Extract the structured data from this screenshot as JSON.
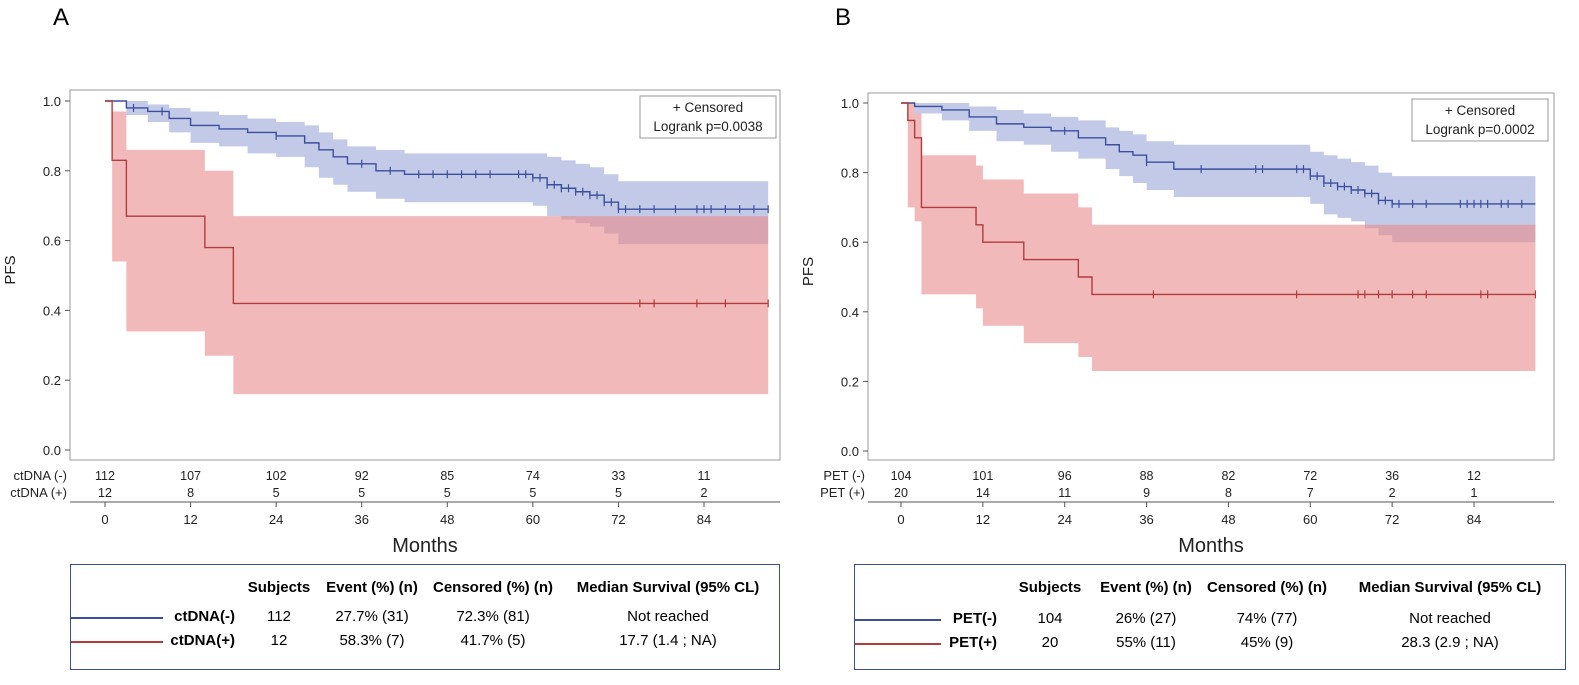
{
  "colors": {
    "negative": "#3b4f9e",
    "negative_band": "#8f9ed4",
    "positive": "#b23b3b",
    "positive_band": "#e88a8a",
    "frame": "#9a9a9a",
    "table_border": "#3a4f94"
  },
  "chart_data": [
    {
      "type": "line",
      "panel_label": "A",
      "ylabel": "PFS",
      "xlabel": "Months",
      "xlim": [
        -3,
        94
      ],
      "ylim": [
        0,
        1.0
      ],
      "xticks": [
        0,
        12,
        24,
        36,
        48,
        60,
        72,
        84
      ],
      "yticks": [
        "0.0",
        "0.2",
        "0.4",
        "0.6",
        "0.8",
        "1.0"
      ],
      "inset_legend": [
        "+ Censored",
        "Logrank p=0.0038"
      ],
      "series": [
        {
          "name": "ctDNA(-)",
          "color_key": "negative",
          "x": [
            0,
            3,
            6,
            9,
            12,
            16,
            20,
            24,
            28,
            30,
            32,
            34,
            38,
            42,
            60,
            62,
            64,
            66,
            68,
            70,
            72,
            93
          ],
          "y": [
            1.0,
            0.98,
            0.97,
            0.95,
            0.93,
            0.92,
            0.91,
            0.9,
            0.88,
            0.86,
            0.84,
            0.82,
            0.8,
            0.79,
            0.78,
            0.76,
            0.75,
            0.74,
            0.73,
            0.71,
            0.69,
            0.69
          ],
          "band_upper": [
            1.0,
            1.0,
            0.99,
            0.98,
            0.97,
            0.96,
            0.95,
            0.94,
            0.93,
            0.91,
            0.89,
            0.87,
            0.86,
            0.85,
            0.85,
            0.84,
            0.83,
            0.82,
            0.81,
            0.79,
            0.77,
            0.77
          ],
          "band_lower": [
            1.0,
            0.96,
            0.94,
            0.91,
            0.88,
            0.87,
            0.85,
            0.84,
            0.81,
            0.78,
            0.76,
            0.74,
            0.72,
            0.71,
            0.7,
            0.67,
            0.66,
            0.65,
            0.64,
            0.62,
            0.59,
            0.58
          ],
          "censored": [
            4,
            8,
            24,
            36,
            40,
            44,
            46,
            48,
            50,
            52,
            54,
            58,
            59,
            60,
            61,
            62,
            63,
            64,
            65,
            66,
            67,
            68,
            69,
            70,
            71,
            72,
            73,
            75,
            77,
            80,
            83,
            84,
            85,
            87,
            89,
            91,
            93
          ]
        },
        {
          "name": "ctDNA(+)",
          "color_key": "positive",
          "x": [
            0,
            1,
            3,
            14,
            18,
            93
          ],
          "y": [
            1.0,
            0.83,
            0.67,
            0.58,
            0.42,
            0.42
          ],
          "band_upper": [
            1.0,
            0.97,
            0.86,
            0.8,
            0.67,
            0.67
          ],
          "band_lower": [
            1.0,
            0.54,
            0.34,
            0.27,
            0.16,
            0.16
          ],
          "censored": [
            75,
            77,
            83,
            87,
            93
          ]
        }
      ],
      "risk_table": {
        "times": [
          0,
          12,
          24,
          36,
          48,
          60,
          72,
          84
        ],
        "rows": [
          {
            "label": "ctDNA (-)",
            "values": [
              "112",
              "107",
              "102",
              "92",
              "85",
              "74",
              "33",
              "11"
            ]
          },
          {
            "label": "ctDNA (+)",
            "values": [
              "12",
              "8",
              "5",
              "5",
              "5",
              "5",
              "5",
              "2"
            ]
          }
        ]
      },
      "summary_table": {
        "headers": [
          "Subjects",
          "Event (%) (n)",
          "Censored (%) (n)",
          "Median Survival (95% CL)"
        ],
        "rows": [
          {
            "name": "ctDNA(-)",
            "color_key": "negative",
            "cells": [
              "112",
              "27.7% (31)",
              "72.3% (81)",
              "Not reached"
            ]
          },
          {
            "name": "ctDNA(+)",
            "color_key": "positive",
            "cells": [
              "12",
              "58.3% (7)",
              "41.7% (5)",
              "17.7 (1.4 ; NA)"
            ]
          }
        ]
      }
    },
    {
      "type": "line",
      "panel_label": "B",
      "ylabel": "PFS",
      "xlabel": "Months",
      "xlim": [
        -3,
        94
      ],
      "ylim": [
        0,
        1.0
      ],
      "xticks": [
        0,
        12,
        24,
        36,
        48,
        60,
        72,
        84
      ],
      "yticks": [
        "0.0",
        "0.2",
        "0.4",
        "0.6",
        "0.8",
        "1.0"
      ],
      "inset_legend": [
        "+ Censored",
        "Logrank p=0.0002"
      ],
      "series": [
        {
          "name": "PET(-)",
          "color_key": "negative",
          "x": [
            0,
            2,
            6,
            10,
            14,
            18,
            22,
            26,
            30,
            32,
            34,
            36,
            40,
            56,
            60,
            62,
            64,
            66,
            68,
            70,
            72,
            93
          ],
          "y": [
            1.0,
            0.99,
            0.98,
            0.96,
            0.94,
            0.93,
            0.92,
            0.9,
            0.88,
            0.86,
            0.85,
            0.83,
            0.81,
            0.81,
            0.79,
            0.77,
            0.76,
            0.75,
            0.74,
            0.72,
            0.71,
            0.71
          ],
          "band_upper": [
            1.0,
            1.0,
            1.0,
            0.99,
            0.98,
            0.97,
            0.96,
            0.95,
            0.93,
            0.92,
            0.91,
            0.89,
            0.88,
            0.88,
            0.86,
            0.85,
            0.84,
            0.83,
            0.82,
            0.8,
            0.79,
            0.79
          ],
          "band_lower": [
            1.0,
            0.97,
            0.95,
            0.92,
            0.89,
            0.88,
            0.86,
            0.84,
            0.81,
            0.79,
            0.77,
            0.75,
            0.73,
            0.73,
            0.71,
            0.68,
            0.67,
            0.66,
            0.64,
            0.62,
            0.6,
            0.59
          ],
          "censored": [
            24,
            36,
            44,
            52,
            53,
            58,
            59,
            60,
            61,
            62,
            63,
            64,
            65,
            66,
            67,
            68,
            69,
            70,
            71,
            72,
            73,
            75,
            77,
            82,
            83,
            84,
            85,
            86,
            88,
            89,
            91
          ]
        },
        {
          "name": "PET(+)",
          "color_key": "positive",
          "x": [
            0,
            1,
            2,
            3,
            11,
            12,
            18,
            26,
            28,
            93
          ],
          "y": [
            1.0,
            0.95,
            0.9,
            0.7,
            0.65,
            0.6,
            0.55,
            0.5,
            0.45,
            0.45
          ],
          "band_upper": [
            1.0,
            1.0,
            0.97,
            0.85,
            0.82,
            0.78,
            0.74,
            0.7,
            0.65,
            0.65
          ],
          "band_lower": [
            1.0,
            0.7,
            0.66,
            0.45,
            0.41,
            0.36,
            0.31,
            0.27,
            0.23,
            0.23
          ],
          "censored": [
            37,
            58,
            67,
            68,
            70,
            72,
            75,
            77,
            85,
            86,
            93
          ]
        }
      ],
      "risk_table": {
        "times": [
          0,
          12,
          24,
          36,
          48,
          60,
          72,
          84
        ],
        "rows": [
          {
            "label": "PET (-)",
            "values": [
              "104",
              "101",
              "96",
              "88",
              "82",
              "72",
              "36",
              "12"
            ]
          },
          {
            "label": "PET (+)",
            "values": [
              "20",
              "14",
              "11",
              "9",
              "8",
              "7",
              "2",
              "1"
            ]
          }
        ]
      },
      "summary_table": {
        "headers": [
          "Subjects",
          "Event (%) (n)",
          "Censored (%) (n)",
          "Median Survival (95% CL)"
        ],
        "rows": [
          {
            "name": "PET(-)",
            "color_key": "negative",
            "cells": [
              "104",
              "26% (27)",
              "74% (77)",
              "Not reached"
            ]
          },
          {
            "name": "PET(+)",
            "color_key": "positive",
            "cells": [
              "20",
              "55% (11)",
              "45% (9)",
              "28.3 (2.9 ; NA)"
            ]
          }
        ]
      }
    }
  ]
}
